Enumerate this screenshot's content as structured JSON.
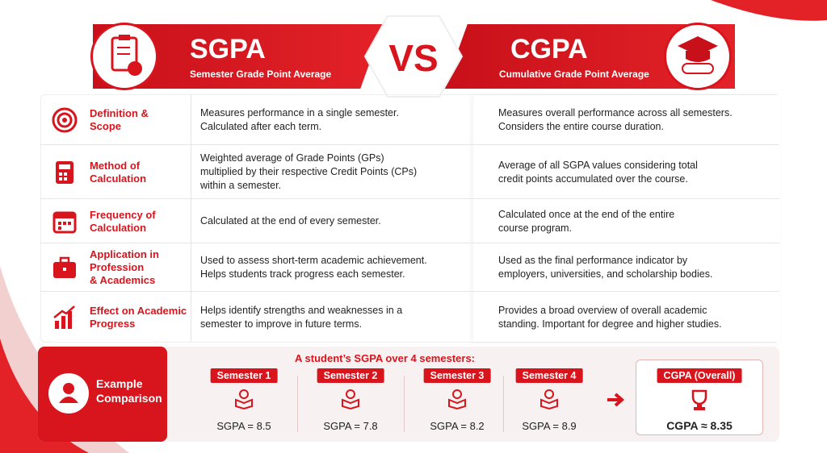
{
  "header": {
    "left": {
      "title": "SGPA",
      "subtitle": "Semester Grade Point Average"
    },
    "vs": "VS",
    "right": {
      "title": "CGPA",
      "subtitle": "Cumulative Grade Point Average"
    }
  },
  "table": {
    "rows": [
      {
        "label": [
          "Definition &",
          "Scope"
        ],
        "sgpa": [
          "Measures performance in a single semester.",
          "Calculated after each term."
        ],
        "cgpa": [
          "Measures overall performance across all semesters.",
          "Considers the entire course duration."
        ]
      },
      {
        "label": [
          "Method of",
          "Calculation"
        ],
        "sgpa": [
          "Weighted average of Grade Points (GPs)",
          "multiplied by their respective Credit Points (CPs)",
          "within a semester."
        ],
        "cgpa": [
          "Average of all SGPA values considering total",
          "credit points accumulated over the course."
        ]
      },
      {
        "label": [
          "Frequency of",
          "Calculation"
        ],
        "sgpa": [
          "Calculated at the end of every semester."
        ],
        "cgpa": [
          "Calculated once at the end of the entire",
          "course program."
        ]
      },
      {
        "label": [
          "Application in",
          "Profession",
          "& Academics"
        ],
        "sgpa": [
          "Used to assess short-term academic achievement.",
          "Helps students track progress each semester."
        ],
        "cgpa": [
          "Used as the final performance indicator by",
          "employers, universities, and scholarship bodies."
        ]
      },
      {
        "label": [
          "Effect on Academic",
          "Progress"
        ],
        "sgpa": [
          "Helps identify strengths and weaknesses in a",
          "semester to improve in future terms."
        ],
        "cgpa": [
          "Provides a broad overview of overall academic",
          "standing. Important for degree and higher studies."
        ]
      }
    ]
  },
  "example": {
    "title": [
      "Example",
      "Comparison"
    ],
    "caption": "A student’s SGPA over 4 semesters:",
    "semesters": [
      {
        "label": "Semester 1",
        "value": "SGPA = 8.5"
      },
      {
        "label": "Semester 2",
        "value": "SGPA = 7.8"
      },
      {
        "label": "Semester 3",
        "value": "SGPA = 8.2"
      },
      {
        "label": "Semester 4",
        "value": "SGPA = 8.9"
      }
    ],
    "result": {
      "label": "CGPA (Overall)",
      "value": "CGPA ≈ 8.35"
    }
  }
}
